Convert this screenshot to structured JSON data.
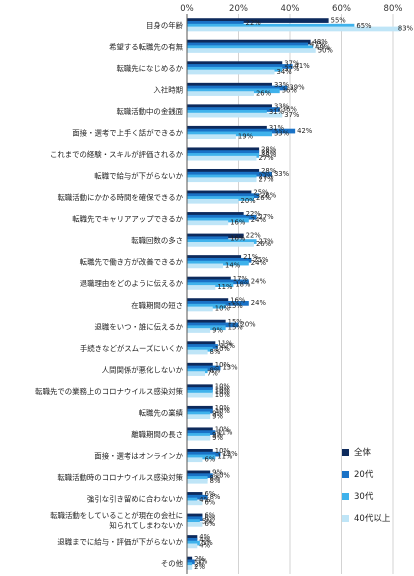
{
  "chart_data": {
    "type": "bar",
    "orientation": "horizontal",
    "xlim": [
      0,
      80
    ],
    "xticks": [
      "0%",
      "20%",
      "40%",
      "60%",
      "80%"
    ],
    "grid": true,
    "legend_position": "bottom-right",
    "categories": [
      "目身の年齢",
      "希望する転職先の有無",
      "転職先になじめるか",
      "入社時期",
      "転職活動中の金銭面",
      "面接・選考で上手く話ができるか",
      "これまでの経験・スキルが評価されるか",
      "転職で給与が下がらないか",
      "転職活動にかかる時間を確保できるか",
      "転職先でキャリアアップできるか",
      "転職回数の多さ",
      "転職先で働き方が改善できるか",
      "退職理由をどのように伝えるか",
      "在職期間の短さ",
      "退職をいつ・誰に伝えるか",
      "手続きなどがスムーズにいくか",
      "人間関係が悪化しないか",
      "転職先での業務上のコロナウイルス感染対策",
      "転職先の業績",
      "離職期間の長さ",
      "面接・選考はオンラインか",
      "転職活動時のコロナウイルス感染対策",
      "強引な引き留めに合わないか",
      [
        "転職活動をしていることが現在の会社に",
        "知られてしまわないか"
      ],
      "退職までに給与・評価が下がらないか",
      "その他"
    ],
    "series": [
      {
        "name": "全体",
        "color": "#0d2a5c",
        "values": [
          55,
          48,
          37,
          33,
          33,
          31,
          28,
          28,
          25,
          22,
          22,
          21,
          17,
          16,
          15,
          11,
          10,
          10,
          10,
          10,
          10,
          9,
          6,
          6,
          4,
          2
        ]
      },
      {
        "name": "20代",
        "color": "#1a72c6",
        "values": [
          22,
          47,
          41,
          39,
          36,
          42,
          28,
          33,
          28,
          27,
          16,
          25,
          24,
          24,
          20,
          12,
          13,
          10,
          10,
          11,
          13,
          10,
          8,
          6,
          4,
          3
        ]
      },
      {
        "name": "30代",
        "color": "#3fb2ec",
        "values": [
          65,
          49,
          37,
          36,
          31,
          33,
          28,
          27,
          26,
          24,
          27,
          24,
          18,
          15,
          15,
          10,
          8,
          10,
          9,
          9,
          11,
          8,
          4,
          5,
          5,
          2
        ]
      },
      {
        "name": "40代以上",
        "color": "#bfe5f7",
        "values": [
          83,
          50,
          34,
          26,
          37,
          19,
          27,
          27,
          20,
          16,
          26,
          14,
          11,
          10,
          9,
          8,
          7,
          10,
          9,
          9,
          6,
          8,
          6,
          6,
          4,
          2
        ]
      }
    ],
    "value_suffix": "%"
  }
}
